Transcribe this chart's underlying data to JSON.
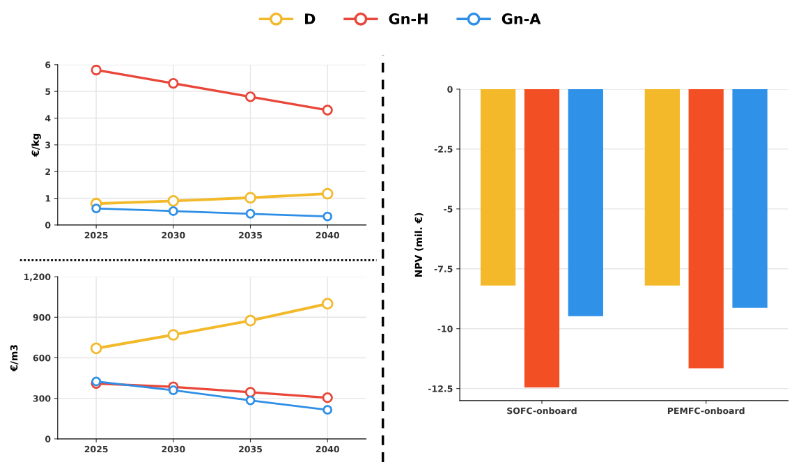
{
  "chart_data": [
    {
      "type": "line",
      "ylabel": "€/kg",
      "x": [
        2025,
        2030,
        2035,
        2040
      ],
      "xlim": [
        2022.5,
        2042.5
      ],
      "xticks": [
        2025,
        2030,
        2035,
        2040
      ],
      "ylim": [
        0,
        6
      ],
      "yticks": [
        0,
        1,
        2,
        3,
        4,
        5,
        6
      ],
      "grid": true,
      "marker": "circle",
      "legend": "top",
      "series": [
        {
          "name": "D",
          "color": "#f2b92b",
          "values": [
            0.8,
            0.9,
            1.02,
            1.17
          ]
        },
        {
          "name": "Gn-H",
          "color": "#e8473a",
          "values": [
            5.8,
            5.3,
            4.8,
            4.3
          ]
        },
        {
          "name": "Gn-A",
          "color": "#2f8fe6",
          "values": [
            0.62,
            0.52,
            0.42,
            0.32
          ]
        }
      ]
    },
    {
      "type": "line",
      "ylabel": "€/m3",
      "x": [
        2025,
        2030,
        2035,
        2040
      ],
      "xlim": [
        2022.5,
        2042.5
      ],
      "xticks": [
        2025,
        2030,
        2035,
        2040
      ],
      "ylim": [
        0,
        1200
      ],
      "yticks": [
        0,
        300,
        600,
        900,
        {
          "value": 1200,
          "label": "1,200"
        }
      ],
      "grid": true,
      "marker": "circle",
      "series": [
        {
          "color": "#f2b92b",
          "values": [
            670,
            770,
            875,
            1000
          ]
        },
        {
          "color": "#e8473a",
          "values": [
            410,
            385,
            345,
            305
          ]
        },
        {
          "color": "#2f8fe6",
          "values": [
            425,
            360,
            285,
            215
          ]
        }
      ]
    },
    {
      "type": "bar",
      "ylabel": "NPV (mil. €)",
      "categories": [
        "SOFC-onboard",
        "PEMFC-onboard"
      ],
      "ylim": [
        -13,
        0
      ],
      "yticks": [
        0,
        -2.5,
        -5,
        -7.5,
        -10,
        -12.5
      ],
      "grid": "y",
      "series": [
        {
          "color": "#f3b92a",
          "values": [
            -8.2,
            -8.2
          ]
        },
        {
          "color": "#f24f24",
          "values": [
            -12.45,
            -11.65
          ]
        },
        {
          "color": "#2f91e8",
          "values": [
            -9.48,
            -9.13
          ]
        }
      ]
    }
  ]
}
